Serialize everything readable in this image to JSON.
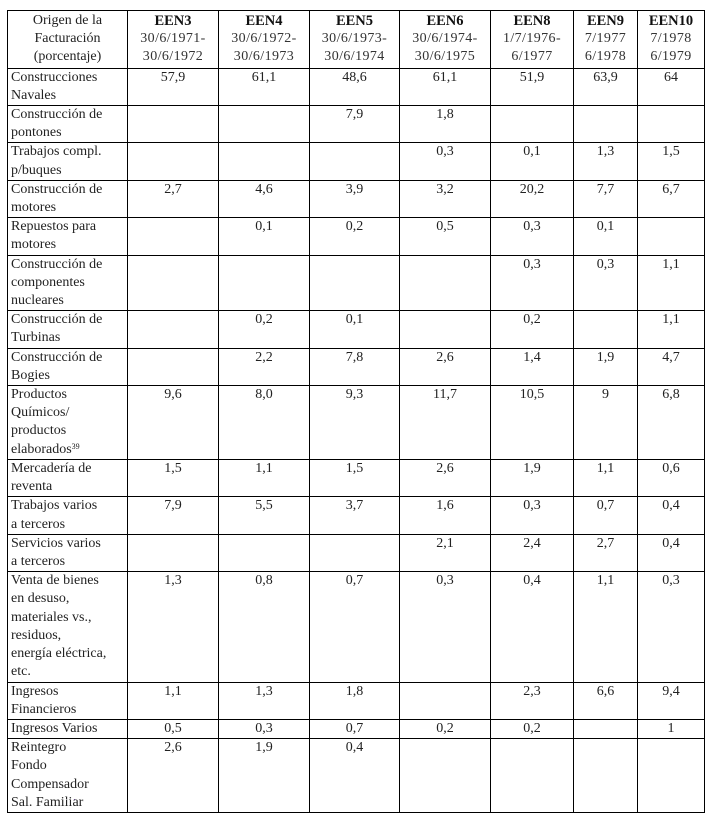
{
  "table": {
    "header": {
      "origin": [
        "Origen de la",
        "Facturación",
        "(porcentaje)"
      ],
      "columns": [
        {
          "name": "EEN3",
          "period_start": "30/6/1971-",
          "period_end": "30/6/1972"
        },
        {
          "name": "EEN4",
          "period_start": "30/6/1972-",
          "period_end": "30/6/1973"
        },
        {
          "name": "EEN5",
          "period_start": "30/6/1973-",
          "period_end": "30/6/1974"
        },
        {
          "name": "EEN6",
          "period_start": "30/6/1974-",
          "period_end": "30/6/1975"
        },
        {
          "name": "EEN8",
          "period_start": "1/7/1976-",
          "period_end": "6/1977"
        },
        {
          "name": "EEN9",
          "period_start": "7/1977",
          "period_end": "6/1978"
        },
        {
          "name": "EEN10",
          "period_start": "7/1978",
          "period_end": "6/1979"
        }
      ]
    },
    "rows": [
      {
        "label": [
          "Construcciones",
          "Navales"
        ],
        "values": [
          "57,9",
          "61,1",
          "48,6",
          "61,1",
          "51,9",
          "63,9",
          "64"
        ]
      },
      {
        "label": [
          "Construcción de",
          "pontones"
        ],
        "values": [
          "",
          "",
          "7,9",
          "1,8",
          "",
          "",
          ""
        ]
      },
      {
        "label": [
          "Trabajos compl.",
          "p/buques"
        ],
        "values": [
          "",
          "",
          "",
          "0,3",
          "0,1",
          "1,3",
          "1,5"
        ]
      },
      {
        "label": [
          "Construcción de",
          "motores"
        ],
        "values": [
          "2,7",
          "4,6",
          "3,9",
          "3,2",
          "20,2",
          "7,7",
          "6,7"
        ]
      },
      {
        "label": [
          "Repuestos para",
          "motores"
        ],
        "values": [
          "",
          "0,1",
          "0,2",
          "0,5",
          "0,3",
          "0,1",
          ""
        ]
      },
      {
        "label": [
          "Construcción de",
          "componentes",
          "nucleares"
        ],
        "values": [
          "",
          "",
          "",
          "",
          "0,3",
          "0,3",
          "1,1"
        ]
      },
      {
        "label": [
          "Construcción de",
          "Turbinas"
        ],
        "values": [
          "",
          "0,2",
          "0,1",
          "",
          "0,2",
          "",
          "1,1"
        ]
      },
      {
        "label": [
          "Construcción de",
          "Bogies"
        ],
        "values": [
          "",
          "2,2",
          "7,8",
          "2,6",
          "1,4",
          "1,9",
          "4,7"
        ]
      },
      {
        "label": [
          "Productos",
          "Químicos/",
          "productos",
          "elaborados"
        ],
        "footnote": "39",
        "values": [
          "9,6",
          "8,0",
          "9,3",
          "11,7",
          "10,5",
          "9",
          "6,8"
        ]
      },
      {
        "label": [
          "Mercadería de",
          "reventa"
        ],
        "values": [
          "1,5",
          "1,1",
          "1,5",
          "2,6",
          "1,9",
          "1,1",
          "0,6"
        ]
      },
      {
        "label": [
          "Trabajos varios",
          "a terceros"
        ],
        "values": [
          "7,9",
          "5,5",
          "3,7",
          "1,6",
          "0,3",
          "0,7",
          "0,4"
        ]
      },
      {
        "label": [
          "Servicios varios",
          "a terceros"
        ],
        "values": [
          "",
          "",
          "",
          "2,1",
          "2,4",
          "2,7",
          "0,4"
        ]
      },
      {
        "label": [
          "Venta de bienes",
          "en desuso,",
          "materiales vs.,",
          "residuos,",
          "energía eléctrica,",
          "etc."
        ],
        "values": [
          "1,3",
          "0,8",
          "0,7",
          "0,3",
          "0,4",
          "1,1",
          "0,3"
        ]
      },
      {
        "label": [
          "Ingresos",
          "Financieros"
        ],
        "values": [
          "1,1",
          "1,3",
          "1,8",
          "",
          "2,3",
          "6,6",
          "9,4"
        ]
      },
      {
        "label": [
          "Ingresos Varios"
        ],
        "values": [
          "0,5",
          "0,3",
          "0,7",
          "0,2",
          "0,2",
          "",
          "1"
        ]
      },
      {
        "label": [
          "Reintegro",
          "Fondo",
          "Compensador",
          "Sal. Familiar"
        ],
        "values": [
          "2,6",
          "1,9",
          "0,4",
          "",
          "",
          "",
          ""
        ]
      }
    ]
  }
}
